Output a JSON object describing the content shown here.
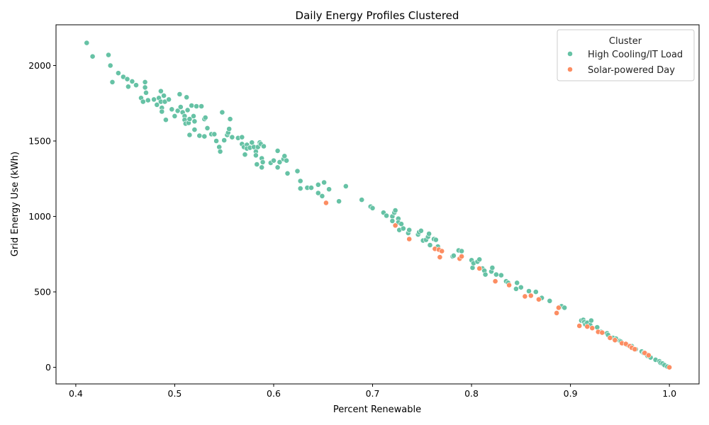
{
  "chart_data": {
    "type": "scatter",
    "title": "Daily Energy Profiles Clustered",
    "xlabel": "Percent Renewable",
    "ylabel": "Grid Energy Use (kWh)",
    "xlim": [
      0.38,
      1.03
    ],
    "ylim": [
      -110,
      2270
    ],
    "xticks": [
      0.4,
      0.5,
      0.6,
      0.7,
      0.8,
      0.9,
      1.0
    ],
    "xtick_labels": [
      "0.4",
      "0.5",
      "0.6",
      "0.7",
      "0.8",
      "0.9",
      "1.0"
    ],
    "yticks": [
      0,
      500,
      1000,
      1500,
      2000
    ],
    "ytick_labels": [
      "0",
      "500",
      "1000",
      "1500",
      "2000"
    ],
    "grid": false,
    "legend": {
      "title": "Cluster",
      "position": "top-right"
    },
    "series": [
      {
        "name": "High Cooling/IT Load",
        "color": "#66c2a5",
        "points": [
          [
            0.411,
            2150
          ],
          [
            0.417,
            2060
          ],
          [
            0.433,
            2070
          ],
          [
            0.435,
            2000
          ],
          [
            0.437,
            1890
          ],
          [
            0.443,
            1950
          ],
          [
            0.448,
            1925
          ],
          [
            0.452,
            1910
          ],
          [
            0.453,
            1860
          ],
          [
            0.457,
            1895
          ],
          [
            0.461,
            1870
          ],
          [
            0.466,
            1785
          ],
          [
            0.468,
            1760
          ],
          [
            0.47,
            1890
          ],
          [
            0.47,
            1855
          ],
          [
            0.471,
            1820
          ],
          [
            0.473,
            1770
          ],
          [
            0.479,
            1775
          ],
          [
            0.482,
            1740
          ],
          [
            0.484,
            1785
          ],
          [
            0.486,
            1830
          ],
          [
            0.486,
            1760
          ],
          [
            0.487,
            1720
          ],
          [
            0.487,
            1695
          ],
          [
            0.489,
            1800
          ],
          [
            0.49,
            1760
          ],
          [
            0.491,
            1640
          ],
          [
            0.494,
            1775
          ],
          [
            0.497,
            1710
          ],
          [
            0.5,
            1665
          ],
          [
            0.503,
            1700
          ],
          [
            0.505,
            1810
          ],
          [
            0.506,
            1725
          ],
          [
            0.508,
            1690
          ],
          [
            0.51,
            1665
          ],
          [
            0.51,
            1640
          ],
          [
            0.511,
            1615
          ],
          [
            0.512,
            1790
          ],
          [
            0.513,
            1705
          ],
          [
            0.514,
            1620
          ],
          [
            0.515,
            1540
          ],
          [
            0.515,
            1645
          ],
          [
            0.517,
            1735
          ],
          [
            0.519,
            1665
          ],
          [
            0.52,
            1630
          ],
          [
            0.52,
            1575
          ],
          [
            0.522,
            1730
          ],
          [
            0.525,
            1535
          ],
          [
            0.527,
            1730
          ],
          [
            0.53,
            1645
          ],
          [
            0.53,
            1530
          ],
          [
            0.531,
            1655
          ],
          [
            0.533,
            1585
          ],
          [
            0.537,
            1545
          ],
          [
            0.54,
            1545
          ],
          [
            0.542,
            1500
          ],
          [
            0.545,
            1460
          ],
          [
            0.546,
            1430
          ],
          [
            0.548,
            1690
          ],
          [
            0.55,
            1505
          ],
          [
            0.553,
            1540
          ],
          [
            0.554,
            1555
          ],
          [
            0.555,
            1580
          ],
          [
            0.556,
            1645
          ],
          [
            0.558,
            1525
          ],
          [
            0.564,
            1520
          ],
          [
            0.568,
            1525
          ],
          [
            0.568,
            1480
          ],
          [
            0.57,
            1460
          ],
          [
            0.571,
            1410
          ],
          [
            0.573,
            1475
          ],
          [
            0.573,
            1450
          ],
          [
            0.576,
            1455
          ],
          [
            0.578,
            1490
          ],
          [
            0.58,
            1460
          ],
          [
            0.582,
            1430
          ],
          [
            0.582,
            1405
          ],
          [
            0.583,
            1345
          ],
          [
            0.584,
            1460
          ],
          [
            0.586,
            1490
          ],
          [
            0.587,
            1480
          ],
          [
            0.588,
            1385
          ],
          [
            0.588,
            1325
          ],
          [
            0.589,
            1360
          ],
          [
            0.59,
            1465
          ],
          [
            0.597,
            1355
          ],
          [
            0.6,
            1370
          ],
          [
            0.604,
            1435
          ],
          [
            0.604,
            1325
          ],
          [
            0.606,
            1360
          ],
          [
            0.61,
            1380
          ],
          [
            0.611,
            1400
          ],
          [
            0.613,
            1370
          ],
          [
            0.614,
            1285
          ],
          [
            0.624,
            1300
          ],
          [
            0.627,
            1235
          ],
          [
            0.627,
            1185
          ],
          [
            0.634,
            1190
          ],
          [
            0.638,
            1190
          ],
          [
            0.645,
            1210
          ],
          [
            0.645,
            1155
          ],
          [
            0.649,
            1135
          ],
          [
            0.651,
            1225
          ],
          [
            0.656,
            1180
          ],
          [
            0.666,
            1100
          ],
          [
            0.673,
            1200
          ],
          [
            0.689,
            1110
          ],
          [
            0.698,
            1065
          ],
          [
            0.7,
            1055
          ],
          [
            0.711,
            1025
          ],
          [
            0.714,
            1005
          ],
          [
            0.72,
            1000
          ],
          [
            0.72,
            970
          ],
          [
            0.722,
            1025
          ],
          [
            0.723,
            1040
          ],
          [
            0.726,
            985
          ],
          [
            0.726,
            960
          ],
          [
            0.727,
            910
          ],
          [
            0.729,
            950
          ],
          [
            0.731,
            920
          ],
          [
            0.736,
            890
          ],
          [
            0.737,
            910
          ],
          [
            0.746,
            880
          ],
          [
            0.747,
            895
          ],
          [
            0.749,
            905
          ],
          [
            0.751,
            840
          ],
          [
            0.754,
            845
          ],
          [
            0.756,
            865
          ],
          [
            0.757,
            885
          ],
          [
            0.758,
            810
          ],
          [
            0.762,
            850
          ],
          [
            0.764,
            845
          ],
          [
            0.766,
            800
          ],
          [
            0.781,
            735
          ],
          [
            0.782,
            740
          ],
          [
            0.787,
            775
          ],
          [
            0.79,
            770
          ],
          [
            0.8,
            710
          ],
          [
            0.801,
            660
          ],
          [
            0.802,
            690
          ],
          [
            0.806,
            700
          ],
          [
            0.808,
            715
          ],
          [
            0.811,
            655
          ],
          [
            0.813,
            640
          ],
          [
            0.814,
            615
          ],
          [
            0.82,
            635
          ],
          [
            0.821,
            660
          ],
          [
            0.825,
            615
          ],
          [
            0.83,
            610
          ],
          [
            0.835,
            570
          ],
          [
            0.837,
            560
          ],
          [
            0.845,
            520
          ],
          [
            0.846,
            560
          ],
          [
            0.85,
            530
          ],
          [
            0.858,
            505
          ],
          [
            0.865,
            500
          ],
          [
            0.871,
            460
          ],
          [
            0.879,
            440
          ],
          [
            0.891,
            405
          ],
          [
            0.894,
            395
          ],
          [
            0.911,
            310
          ],
          [
            0.913,
            315
          ],
          [
            0.914,
            300
          ],
          [
            0.915,
            285
          ],
          [
            0.917,
            295
          ],
          [
            0.92,
            280
          ],
          [
            0.921,
            310
          ],
          [
            0.927,
            265
          ],
          [
            0.931,
            235
          ],
          [
            0.937,
            225
          ],
          [
            0.938,
            215
          ],
          [
            0.943,
            195
          ],
          [
            0.946,
            190
          ],
          [
            0.95,
            175
          ],
          [
            0.951,
            170
          ],
          [
            0.957,
            150
          ],
          [
            0.962,
            140
          ],
          [
            0.966,
            120
          ],
          [
            0.972,
            105
          ],
          [
            0.974,
            95
          ],
          [
            0.977,
            85
          ],
          [
            0.978,
            75
          ],
          [
            0.98,
            70
          ],
          [
            0.981,
            65
          ],
          [
            0.986,
            50
          ],
          [
            0.99,
            40
          ],
          [
            0.991,
            30
          ],
          [
            0.993,
            25
          ],
          [
            0.995,
            15
          ],
          [
            0.998,
            5
          ]
        ]
      },
      {
        "name": "Solar-powered Day",
        "color": "#fc8d62",
        "points": [
          [
            0.653,
            1090
          ],
          [
            0.723,
            940
          ],
          [
            0.737,
            850
          ],
          [
            0.763,
            785
          ],
          [
            0.767,
            780
          ],
          [
            0.768,
            730
          ],
          [
            0.77,
            770
          ],
          [
            0.788,
            720
          ],
          [
            0.79,
            735
          ],
          [
            0.808,
            655
          ],
          [
            0.824,
            570
          ],
          [
            0.838,
            545
          ],
          [
            0.854,
            470
          ],
          [
            0.86,
            475
          ],
          [
            0.868,
            450
          ],
          [
            0.886,
            360
          ],
          [
            0.888,
            395
          ],
          [
            0.909,
            275
          ],
          [
            0.917,
            270
          ],
          [
            0.922,
            260
          ],
          [
            0.928,
            235
          ],
          [
            0.932,
            230
          ],
          [
            0.94,
            195
          ],
          [
            0.945,
            180
          ],
          [
            0.952,
            160
          ],
          [
            0.956,
            155
          ],
          [
            0.96,
            140
          ],
          [
            0.962,
            130
          ],
          [
            0.965,
            120
          ],
          [
            0.975,
            95
          ],
          [
            0.979,
            80
          ],
          [
            1.0,
            0
          ]
        ]
      }
    ]
  }
}
